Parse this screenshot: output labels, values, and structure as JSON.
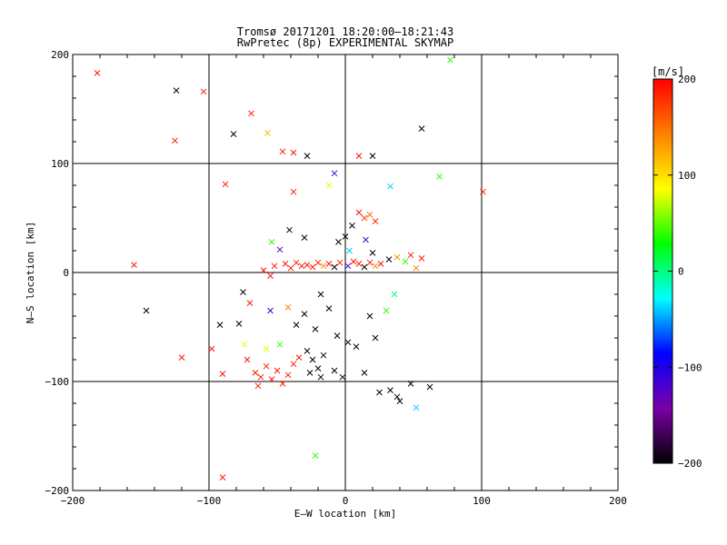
{
  "header": {
    "title": "Tromsø 20171201 18:20:00–18:21:43",
    "subtitle": "RwPretec (8p) EXPERIMENTAL SKYMAP"
  },
  "chart_data": {
    "type": "scatter",
    "title": "Tromsø 20171201 18:20:00–18:21:43",
    "subtitle": "RwPretec (8p) EXPERIMENTAL SKYMAP",
    "xlabel": "E–W location [km]",
    "ylabel": "N–S location [km]",
    "xlim": [
      -200,
      200
    ],
    "ylim": [
      -200,
      200
    ],
    "x_ticks": [
      -200,
      -100,
      0,
      100,
      200
    ],
    "y_ticks": [
      -200,
      -100,
      0,
      100,
      200
    ],
    "x_tick_labels": [
      "−200",
      "−100",
      "0",
      "100",
      "200"
    ],
    "y_tick_labels": [
      "−200",
      "−100",
      "0",
      "100",
      "200"
    ],
    "grid": true,
    "colorbar": {
      "label": "[m/s]",
      "min": -200,
      "max": 200,
      "ticks": [
        200,
        100,
        0,
        -100,
        -200
      ],
      "tick_labels": [
        "200",
        "100",
        "0",
        "−100",
        "−200"
      ],
      "colormap": "rainbow black-to-red",
      "stops": [
        "#000000",
        "#7a00a8",
        "#0000ff",
        "#00ffff",
        "#00ff00",
        "#ffff00",
        "#ff8000",
        "#ff0000"
      ]
    },
    "markers": {
      "large": "x",
      "small": "dot"
    },
    "points": [
      {
        "x": -182,
        "y": 183,
        "v": 190,
        "m": "x"
      },
      {
        "x": -124,
        "y": 167,
        "v": -200,
        "m": "x"
      },
      {
        "x": -104,
        "y": 166,
        "v": 190,
        "m": "x"
      },
      {
        "x": -125,
        "y": 121,
        "v": 190,
        "m": "x"
      },
      {
        "x": -88,
        "y": 81,
        "v": 190,
        "m": "x"
      },
      {
        "x": -155,
        "y": 7,
        "v": 190,
        "m": "x"
      },
      {
        "x": -146,
        "y": -35,
        "v": -200,
        "m": "x"
      },
      {
        "x": -120,
        "y": -78,
        "v": 190,
        "m": "x"
      },
      {
        "x": -90,
        "y": -188,
        "v": 190,
        "m": "x"
      },
      {
        "x": -69,
        "y": 146,
        "v": 190,
        "m": "x"
      },
      {
        "x": -82,
        "y": 127,
        "v": -200,
        "m": "x"
      },
      {
        "x": -57,
        "y": 128,
        "v": 120,
        "m": "x"
      },
      {
        "x": 56,
        "y": 132,
        "v": -200,
        "m": "x"
      },
      {
        "x": 77,
        "y": 195,
        "v": 40,
        "m": "x"
      },
      {
        "x": 101,
        "y": 74,
        "v": 190,
        "m": "x"
      },
      {
        "x": 69,
        "y": 88,
        "v": 40,
        "m": "x"
      },
      {
        "x": -46,
        "y": 111,
        "v": 190,
        "m": "x"
      },
      {
        "x": -38,
        "y": 110,
        "v": 190,
        "m": "x"
      },
      {
        "x": -28,
        "y": 107,
        "v": -200,
        "m": "x"
      },
      {
        "x": 10,
        "y": 107,
        "v": 190,
        "m": "x"
      },
      {
        "x": 20,
        "y": 107,
        "v": -200,
        "m": "x"
      },
      {
        "x": -8,
        "y": 91,
        "v": -120,
        "m": "x"
      },
      {
        "x": 33,
        "y": 79,
        "v": -40,
        "m": "x"
      },
      {
        "x": -38,
        "y": 74,
        "v": 190,
        "m": "x"
      },
      {
        "x": -12,
        "y": 80,
        "v": 80,
        "m": "x"
      },
      {
        "x": -54,
        "y": 28,
        "v": 40,
        "m": "x"
      },
      {
        "x": -48,
        "y": 21,
        "v": -120,
        "m": "x"
      },
      {
        "x": -41,
        "y": 39,
        "v": -200,
        "m": "x"
      },
      {
        "x": -30,
        "y": 32,
        "v": -200,
        "m": "x"
      },
      {
        "x": 10,
        "y": 55,
        "v": 190,
        "m": "x"
      },
      {
        "x": 14,
        "y": 50,
        "v": 170,
        "m": "x"
      },
      {
        "x": 18,
        "y": 53,
        "v": 150,
        "m": "x"
      },
      {
        "x": 22,
        "y": 47,
        "v": 180,
        "m": "x"
      },
      {
        "x": 5,
        "y": 43,
        "v": -200,
        "m": "x"
      },
      {
        "x": 0,
        "y": 33,
        "v": -200,
        "m": "x"
      },
      {
        "x": 3,
        "y": 20,
        "v": -40,
        "m": "x"
      },
      {
        "x": -5,
        "y": 28,
        "v": -200,
        "m": "x"
      },
      {
        "x": 15,
        "y": 30,
        "v": -120,
        "m": "x"
      },
      {
        "x": 20,
        "y": 18,
        "v": -200,
        "m": "x"
      },
      {
        "x": -60,
        "y": 2,
        "v": 190,
        "m": "x"
      },
      {
        "x": -55,
        "y": -3,
        "v": 190,
        "m": "x"
      },
      {
        "x": -52,
        "y": 6,
        "v": 190,
        "m": "x"
      },
      {
        "x": -44,
        "y": 8,
        "v": 190,
        "m": "x"
      },
      {
        "x": -40,
        "y": 4,
        "v": 190,
        "m": "x"
      },
      {
        "x": -36,
        "y": 9,
        "v": 190,
        "m": "x"
      },
      {
        "x": -32,
        "y": 6,
        "v": 190,
        "m": "x"
      },
      {
        "x": -28,
        "y": 7,
        "v": 190,
        "m": "x"
      },
      {
        "x": -24,
        "y": 5,
        "v": 190,
        "m": "x"
      },
      {
        "x": -20,
        "y": 9,
        "v": 190,
        "m": "x"
      },
      {
        "x": -16,
        "y": 6,
        "v": 140,
        "m": "x"
      },
      {
        "x": -12,
        "y": 8,
        "v": 190,
        "m": "x"
      },
      {
        "x": -8,
        "y": 5,
        "v": -200,
        "m": "x"
      },
      {
        "x": -4,
        "y": 9,
        "v": 190,
        "m": "x"
      },
      {
        "x": 2,
        "y": 6,
        "v": -120,
        "m": "x"
      },
      {
        "x": 6,
        "y": 10,
        "v": 190,
        "m": "x"
      },
      {
        "x": 10,
        "y": 8,
        "v": 190,
        "m": "x"
      },
      {
        "x": 14,
        "y": 5,
        "v": -200,
        "m": "x"
      },
      {
        "x": 18,
        "y": 9,
        "v": 190,
        "m": "x"
      },
      {
        "x": 22,
        "y": 6,
        "v": 140,
        "m": "x"
      },
      {
        "x": 26,
        "y": 8,
        "v": 190,
        "m": "x"
      },
      {
        "x": 32,
        "y": 12,
        "v": -200,
        "m": "x"
      },
      {
        "x": 38,
        "y": 14,
        "v": 140,
        "m": "x"
      },
      {
        "x": 44,
        "y": 10,
        "v": 40,
        "m": "x"
      },
      {
        "x": 48,
        "y": 16,
        "v": 190,
        "m": "x"
      },
      {
        "x": 56,
        "y": 13,
        "v": 190,
        "m": "x"
      },
      {
        "x": 52,
        "y": 4,
        "v": 140,
        "m": "x"
      },
      {
        "x": -75,
        "y": -18,
        "v": -200,
        "m": "x"
      },
      {
        "x": -70,
        "y": -28,
        "v": 190,
        "m": "x"
      },
      {
        "x": -92,
        "y": -48,
        "v": -200,
        "m": "x"
      },
      {
        "x": -78,
        "y": -47,
        "v": -200,
        "m": "x"
      },
      {
        "x": -55,
        "y": -35,
        "v": -120,
        "m": "x"
      },
      {
        "x": -42,
        "y": -32,
        "v": 140,
        "m": "x"
      },
      {
        "x": -36,
        "y": -48,
        "v": -200,
        "m": "x"
      },
      {
        "x": -30,
        "y": -38,
        "v": -200,
        "m": "x"
      },
      {
        "x": -22,
        "y": -52,
        "v": -200,
        "m": "x"
      },
      {
        "x": -18,
        "y": -20,
        "v": -200,
        "m": "x"
      },
      {
        "x": -12,
        "y": -33,
        "v": -200,
        "m": "x"
      },
      {
        "x": -6,
        "y": -58,
        "v": -200,
        "m": "x"
      },
      {
        "x": 2,
        "y": -64,
        "v": -200,
        "m": "x"
      },
      {
        "x": 8,
        "y": -68,
        "v": -200,
        "m": "x"
      },
      {
        "x": 18,
        "y": -40,
        "v": -200,
        "m": "x"
      },
      {
        "x": 22,
        "y": -60,
        "v": -200,
        "m": "x"
      },
      {
        "x": -98,
        "y": -70,
        "v": 190,
        "m": "x"
      },
      {
        "x": -90,
        "y": -93,
        "v": 190,
        "m": "x"
      },
      {
        "x": -72,
        "y": -80,
        "v": 190,
        "m": "x"
      },
      {
        "x": -66,
        "y": -92,
        "v": 190,
        "m": "x"
      },
      {
        "x": -62,
        "y": -96,
        "v": 190,
        "m": "x"
      },
      {
        "x": -58,
        "y": -86,
        "v": 190,
        "m": "x"
      },
      {
        "x": -54,
        "y": -98,
        "v": 190,
        "m": "x"
      },
      {
        "x": -50,
        "y": -90,
        "v": 190,
        "m": "x"
      },
      {
        "x": -46,
        "y": -102,
        "v": 190,
        "m": "x"
      },
      {
        "x": -42,
        "y": -94,
        "v": 190,
        "m": "x"
      },
      {
        "x": -38,
        "y": -84,
        "v": 190,
        "m": "x"
      },
      {
        "x": -34,
        "y": -78,
        "v": 190,
        "m": "x"
      },
      {
        "x": -64,
        "y": -104,
        "v": 190,
        "m": "x"
      },
      {
        "x": -58,
        "y": -70,
        "v": 80,
        "m": "x"
      },
      {
        "x": -48,
        "y": -66,
        "v": 40,
        "m": "x"
      },
      {
        "x": -74,
        "y": -66,
        "v": 80,
        "m": "x"
      },
      {
        "x": -28,
        "y": -72,
        "v": -200,
        "m": "x"
      },
      {
        "x": -24,
        "y": -80,
        "v": -200,
        "m": "x"
      },
      {
        "x": -20,
        "y": -88,
        "v": -200,
        "m": "x"
      },
      {
        "x": -16,
        "y": -76,
        "v": -200,
        "m": "x"
      },
      {
        "x": -26,
        "y": -92,
        "v": -200,
        "m": "x"
      },
      {
        "x": -18,
        "y": -96,
        "v": -200,
        "m": "x"
      },
      {
        "x": -8,
        "y": -90,
        "v": -200,
        "m": "x"
      },
      {
        "x": -2,
        "y": -96,
        "v": -200,
        "m": "x"
      },
      {
        "x": 14,
        "y": -92,
        "v": -200,
        "m": "x"
      },
      {
        "x": 25,
        "y": -110,
        "v": -200,
        "m": "x"
      },
      {
        "x": 33,
        "y": -108,
        "v": -200,
        "m": "x"
      },
      {
        "x": 38,
        "y": -114,
        "v": -200,
        "m": "x"
      },
      {
        "x": 40,
        "y": -118,
        "v": -200,
        "m": "x"
      },
      {
        "x": 48,
        "y": -102,
        "v": -200,
        "m": "x"
      },
      {
        "x": 52,
        "y": -124,
        "v": -40,
        "m": "x"
      },
      {
        "x": 62,
        "y": -105,
        "v": -200,
        "m": "x"
      },
      {
        "x": -22,
        "y": -168,
        "v": 40,
        "m": "x"
      },
      {
        "x": 30,
        "y": -35,
        "v": 40,
        "m": "x"
      },
      {
        "x": 36,
        "y": -20,
        "v": 0,
        "m": "x"
      }
    ]
  }
}
